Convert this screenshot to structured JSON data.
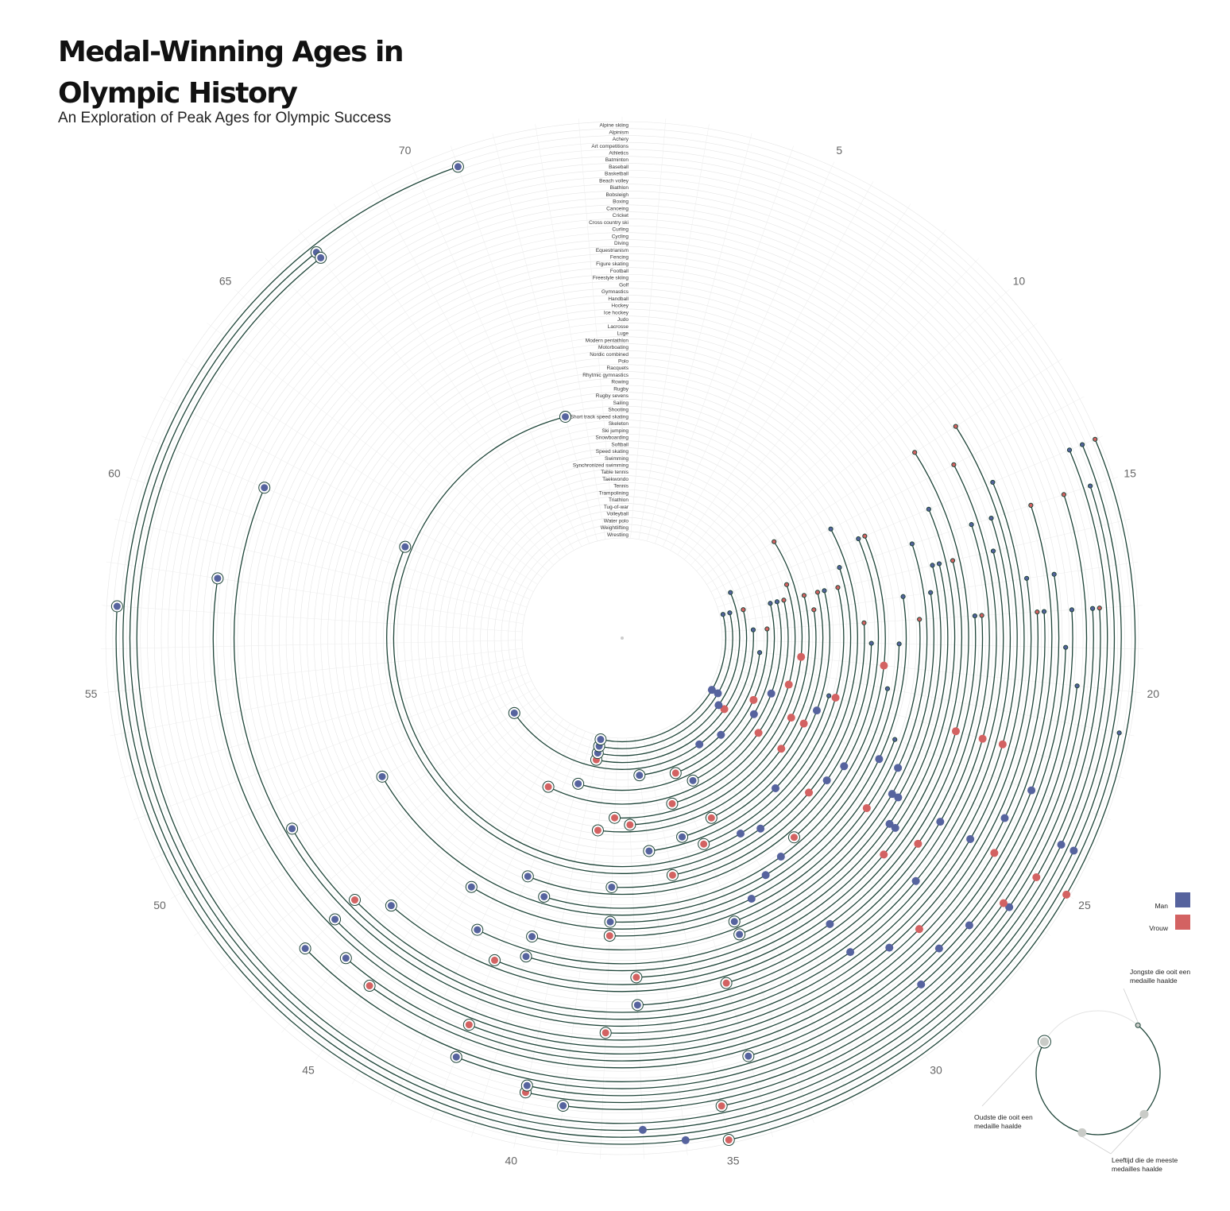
{
  "title": "Medal-Winning Ages in Olympic History",
  "subtitle": "An Exploration of Peak Ages for Olympic Success",
  "colors": {
    "man": "#56639e",
    "vrouw": "#d36262",
    "arc": "#1f4539",
    "grid": "#e6e6e6",
    "legend_grey": "#c9cbc7"
  },
  "legend": {
    "man": "Man",
    "vrouw": "Vrouw"
  },
  "annotations": {
    "youngest": [
      "Jongste die ooit een",
      "medaille haalde"
    ],
    "oldest": [
      "Oudste die ooit een",
      "medaille haalde"
    ],
    "peak": [
      "Leeftijd die de meeste",
      "medailles haalde"
    ]
  },
  "chart_data": {
    "type": "radial-spiral",
    "title": "Medal-Winning Ages in Olympic History",
    "subtitle": "An Exploration of Peak Ages for Olympic Success",
    "angle_axis": {
      "quantity": "age",
      "range": [
        0,
        75
      ],
      "ticks": [
        5,
        10,
        15,
        20,
        25,
        30,
        35,
        40,
        45,
        50,
        55,
        60,
        65,
        70
      ]
    },
    "series": [
      {
        "sport": "Alpine skiing",
        "min": 14,
        "peak": 25,
        "max": 35,
        "peak_gender": "Vrouw"
      },
      {
        "sport": "Alpinism",
        "min": 21,
        "peak": 36,
        "max": 57,
        "peak_gender": "Man"
      },
      {
        "sport": "Achery",
        "min": 14,
        "peak": 24,
        "max": 71,
        "peak_gender": "Man"
      },
      {
        "sport": "Art competitions",
        "min": 15,
        "peak": 37,
        "max": 67,
        "peak_gender": "Man"
      },
      {
        "sport": "Athletics",
        "min": 14,
        "peak": 24,
        "max": 67,
        "peak_gender": "Man"
      },
      {
        "sport": "Batminton",
        "min": 18,
        "peak": 25,
        "max": 35,
        "peak_gender": "Vrouw"
      },
      {
        "sport": "Baseball",
        "min": 18,
        "peak": 26,
        "max": 39,
        "peak_gender": "Man"
      },
      {
        "sport": "Basketball",
        "min": 15,
        "peak": 26,
        "max": 40,
        "peak_gender": "Vrouw"
      },
      {
        "sport": "Beach volley",
        "min": 20,
        "peak": 29,
        "max": 40,
        "peak_gender": "Man"
      },
      {
        "sport": "Biathlon",
        "min": 18,
        "peak": 27,
        "max": 42,
        "peak_gender": "Man"
      },
      {
        "sport": "Bobsleigh",
        "min": 19,
        "peak": 28,
        "max": 47,
        "peak_gender": "Man"
      },
      {
        "sport": "Boxing",
        "min": 17,
        "peak": 23,
        "max": 34,
        "peak_gender": "Man"
      },
      {
        "sport": "Canoeing",
        "min": 15,
        "peak": 25,
        "max": 45,
        "peak_gender": "Vrouw"
      },
      {
        "sport": "Cricket",
        "min": 18,
        "peak": 24,
        "max": 46,
        "peak_gender": "Man"
      },
      {
        "sport": "Cross country ski",
        "min": 18,
        "peak": 28,
        "max": 42,
        "peak_gender": "Vrouw"
      },
      {
        "sport": "Curling",
        "min": 17,
        "peak": 29,
        "max": 58,
        "peak_gender": "Man"
      },
      {
        "sport": "Cycling",
        "min": 14,
        "peak": 25,
        "max": 47,
        "peak_gender": "Man"
      },
      {
        "sport": "Diving",
        "min": 12,
        "peak": 22,
        "max": 38,
        "peak_gender": "Vrouw"
      },
      {
        "sport": "Equestrianism",
        "min": 15,
        "peak": 30,
        "max": 61,
        "peak_gender": "Man"
      },
      {
        "sport": "Fencing",
        "min": 16,
        "peak": 27,
        "max": 50,
        "peak_gender": "Man"
      },
      {
        "sport": "Figure skating",
        "min": 13,
        "peak": 22,
        "max": 47,
        "peak_gender": "Vrouw"
      },
      {
        "sport": "Football",
        "min": 15,
        "peak": 25,
        "max": 37,
        "peak_gender": "Man"
      },
      {
        "sport": "Freestyle skiing",
        "min": 18,
        "peak": 26,
        "max": 34,
        "peak_gender": "Vrouw"
      },
      {
        "sport": "Golf",
        "min": 18,
        "peak": 30,
        "max": 46,
        "peak_gender": "Man"
      },
      {
        "sport": "Gymnastics",
        "min": 12,
        "peak": 22,
        "max": 42,
        "peak_gender": "Vrouw"
      },
      {
        "sport": "Handball",
        "min": 16,
        "peak": 27,
        "max": 37,
        "peak_gender": "Vrouw"
      },
      {
        "sport": "Hockey",
        "min": 14,
        "peak": 26,
        "max": 41,
        "peak_gender": "Man"
      },
      {
        "sport": "Ice hockey",
        "min": 16,
        "peak": 26,
        "max": 43,
        "peak_gender": "Man"
      },
      {
        "sport": "Judo",
        "min": 16,
        "peak": 25,
        "max": 33,
        "peak_gender": "Man"
      },
      {
        "sport": "Lacrosse",
        "min": 17,
        "peak": 25,
        "max": 41,
        "peak_gender": "Man"
      },
      {
        "sport": "Luge",
        "min": 15,
        "peak": 24,
        "max": 33,
        "peak_gender": "Man"
      },
      {
        "sport": "Modern pentathlon",
        "min": 18,
        "peak": 26,
        "max": 38,
        "peak_gender": "Vrouw"
      },
      {
        "sport": "Motorboating",
        "min": 23,
        "peak": 32,
        "max": 44,
        "peak_gender": "Man"
      },
      {
        "sport": "Nordic combined",
        "min": 17,
        "peak": 24,
        "max": 38,
        "peak_gender": "Man"
      },
      {
        "sport": "Polo",
        "min": 19,
        "peak": 31,
        "max": 50,
        "peak_gender": "Man"
      },
      {
        "sport": "Racquets",
        "min": 21,
        "peak": 30,
        "max": 41,
        "peak_gender": "Man"
      },
      {
        "sport": "Rhytmic gymnastics",
        "min": 14,
        "peak": 20,
        "max": 29,
        "peak_gender": "Vrouw"
      },
      {
        "sport": "Rowing",
        "min": 14,
        "peak": 25,
        "max": 42,
        "peak_gender": "Man"
      },
      {
        "sport": "Rugby",
        "min": 19,
        "peak": 26,
        "max": 38,
        "peak_gender": "Man"
      },
      {
        "sport": "Rugby sevens",
        "min": 18,
        "peak": 27,
        "max": 35,
        "peak_gender": "Vrouw"
      },
      {
        "sport": "Sailing",
        "min": 13,
        "peak": 30,
        "max": 61,
        "peak_gender": "Man"
      },
      {
        "sport": "Shooting",
        "min": 15,
        "peak": 31,
        "max": 72,
        "peak_gender": "Man"
      },
      {
        "sport": "Short track speed skating",
        "min": 16,
        "peak": 22,
        "max": 33,
        "peak_gender": "Vrouw"
      },
      {
        "sport": "Skeleton",
        "min": 22,
        "peak": 28,
        "max": 36,
        "peak_gender": "Man"
      },
      {
        "sport": "Ski jumping",
        "min": 16,
        "peak": 23,
        "max": 34,
        "peak_gender": "Man"
      },
      {
        "sport": "Snowboarding",
        "min": 16,
        "peak": 24,
        "max": 32,
        "peak_gender": "Vrouw"
      },
      {
        "sport": "Softball",
        "min": 17,
        "peak": 26,
        "max": 39,
        "peak_gender": "Vrouw"
      },
      {
        "sport": "Speed skating",
        "min": 16,
        "peak": 24,
        "max": 37,
        "peak_gender": "Vrouw"
      },
      {
        "sport": "Swimming",
        "min": 12,
        "peak": 20,
        "max": 38,
        "peak_gender": "Vrouw"
      },
      {
        "sport": "Synchronized swimming",
        "min": 15,
        "peak": 22,
        "max": 34,
        "peak_gender": "Vrouw"
      },
      {
        "sport": "Table tennis",
        "min": 16,
        "peak": 26,
        "max": 43,
        "peak_gender": "Vrouw"
      },
      {
        "sport": "Taekwondo",
        "min": 16,
        "peak": 23,
        "max": 32,
        "peak_gender": "Man"
      },
      {
        "sport": "Tennis",
        "min": 16,
        "peak": 25,
        "max": 41,
        "peak_gender": "Man"
      },
      {
        "sport": "Trampolining",
        "min": 18,
        "peak": 24,
        "max": 33,
        "peak_gender": "Vrouw"
      },
      {
        "sport": "Triathlon",
        "min": 20,
        "peak": 28,
        "max": 36,
        "peak_gender": "Man"
      },
      {
        "sport": "Tug-of-war",
        "min": 18,
        "peak": 30,
        "max": 49,
        "peak_gender": "Man"
      },
      {
        "sport": "Volleyball",
        "min": 16,
        "peak": 26,
        "max": 40,
        "peak_gender": "Vrouw"
      },
      {
        "sport": "Water polo",
        "min": 14,
        "peak": 26,
        "max": 40,
        "peak_gender": "Man"
      },
      {
        "sport": "Weightlifting",
        "min": 16,
        "peak": 25,
        "max": 40,
        "peak_gender": "Man"
      },
      {
        "sport": "Wrestling",
        "min": 16,
        "peak": 25,
        "max": 40,
        "peak_gender": "Man"
      }
    ]
  }
}
